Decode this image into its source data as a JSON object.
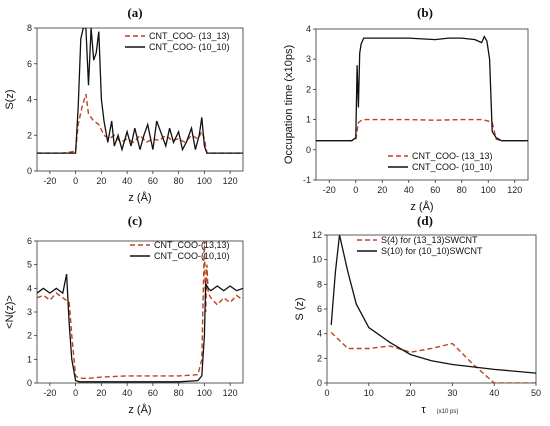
{
  "chart_data": [
    {
      "id": "a",
      "type": "line",
      "panel_label": "(a)",
      "xlabel": "z (Å)",
      "ylabel": "S(z)",
      "xlim": [
        -30,
        130
      ],
      "ylim": [
        0,
        8
      ],
      "xticks": [
        -20,
        0,
        20,
        40,
        60,
        80,
        100,
        120
      ],
      "yticks": [
        0,
        2,
        4,
        6,
        8
      ],
      "legend_position": "top-right",
      "series": [
        {
          "name": "CNT_COO- (13_13)",
          "style": "dashed",
          "color": "#b8451f",
          "x": [
            -30,
            -10,
            0,
            2,
            5,
            8,
            10,
            14,
            18,
            22,
            26,
            30,
            35,
            40,
            45,
            50,
            55,
            60,
            65,
            70,
            75,
            80,
            85,
            90,
            95,
            98,
            100,
            102,
            110,
            120,
            130
          ],
          "y": [
            1.0,
            1.0,
            1.1,
            2.6,
            3.6,
            4.3,
            3.2,
            2.8,
            2.6,
            2.0,
            1.8,
            2.0,
            1.6,
            1.8,
            1.6,
            2.0,
            1.6,
            1.8,
            1.7,
            2.0,
            1.7,
            1.8,
            1.6,
            2.0,
            1.8,
            2.2,
            1.8,
            1.0,
            1.0,
            1.0,
            1.0
          ]
        },
        {
          "name": "CNT_COO- (10_10)",
          "style": "solid",
          "color": "#111111",
          "x": [
            -30,
            -10,
            0,
            2,
            4,
            6,
            8,
            10,
            12,
            14,
            16,
            18,
            20,
            22,
            25,
            28,
            30,
            33,
            36,
            40,
            43,
            46,
            50,
            53,
            56,
            60,
            63,
            66,
            70,
            73,
            76,
            80,
            83,
            86,
            90,
            93,
            96,
            98,
            100,
            102,
            110,
            120,
            130
          ],
          "y": [
            1.0,
            1.0,
            1.0,
            3.6,
            7.4,
            8.0,
            8.0,
            4.8,
            8.0,
            6.2,
            6.6,
            7.8,
            4.0,
            2.8,
            1.6,
            2.8,
            1.4,
            2.0,
            1.2,
            2.2,
            1.4,
            2.4,
            1.2,
            2.0,
            2.6,
            1.2,
            2.8,
            2.2,
            1.4,
            2.4,
            1.6,
            2.2,
            1.2,
            1.6,
            2.4,
            1.2,
            2.0,
            3.0,
            1.4,
            1.0,
            1.0,
            1.0,
            1.0
          ]
        }
      ]
    },
    {
      "id": "b",
      "type": "line",
      "panel_label": "(b)",
      "xlabel": "z (Å)",
      "ylabel": "Occupation time (x10ps)",
      "xlim": [
        -30,
        130
      ],
      "ylim": [
        -1,
        4
      ],
      "xticks": [
        -20,
        0,
        20,
        40,
        60,
        80,
        100,
        120
      ],
      "yticks": [
        -1,
        0,
        1,
        2,
        3,
        4
      ],
      "legend_position": "bottom-right",
      "series": [
        {
          "name": "CNT_COO- (13_13)",
          "style": "dashed",
          "color": "#b8451f",
          "x": [
            -30,
            -10,
            -3,
            0,
            2,
            5,
            10,
            20,
            40,
            60,
            80,
            95,
            100,
            103,
            106,
            110,
            120,
            130
          ],
          "y": [
            0.3,
            0.3,
            0.3,
            0.35,
            0.9,
            1.0,
            1.0,
            1.0,
            1.0,
            0.98,
            1.0,
            1.0,
            0.95,
            0.9,
            0.35,
            0.3,
            0.3,
            0.3
          ],
          "style_note": ""
        },
        {
          "name": "CNT_COO- (10_10)",
          "style": "solid",
          "color": "#111111",
          "x": [
            -30,
            -10,
            -3,
            0,
            1,
            2,
            3,
            4,
            6,
            10,
            20,
            40,
            60,
            70,
            80,
            90,
            95,
            97,
            99,
            101,
            103,
            106,
            110,
            120,
            130
          ],
          "y": [
            0.3,
            0.3,
            0.3,
            0.4,
            2.8,
            1.4,
            3.2,
            3.5,
            3.7,
            3.7,
            3.7,
            3.7,
            3.65,
            3.7,
            3.7,
            3.65,
            3.55,
            3.75,
            3.6,
            3.0,
            0.6,
            0.4,
            0.3,
            0.3,
            0.3
          ]
        }
      ]
    },
    {
      "id": "c",
      "type": "line",
      "panel_label": "(c)",
      "xlabel": "z (Å)",
      "ylabel": "<N(z)>",
      "xlim": [
        -30,
        130
      ],
      "ylim": [
        0,
        6
      ],
      "xticks": [
        -20,
        0,
        20,
        40,
        60,
        80,
        100,
        120
      ],
      "yticks": [
        0,
        1,
        2,
        3,
        4,
        5,
        6
      ],
      "legend_position": "top-right",
      "series": [
        {
          "name": "CNT_COO-(13,13)",
          "style": "dashed",
          "color": "#b8451f",
          "x": [
            -30,
            -25,
            -20,
            -15,
            -10,
            -5,
            -3,
            0,
            3,
            10,
            20,
            40,
            60,
            80,
            95,
            98,
            100,
            101,
            102,
            103,
            105,
            110,
            115,
            120,
            125,
            130
          ],
          "y": [
            3.6,
            3.7,
            3.5,
            3.8,
            3.6,
            3.4,
            2.0,
            0.3,
            0.2,
            0.2,
            0.25,
            0.3,
            0.3,
            0.3,
            0.35,
            1.0,
            6.0,
            3.0,
            5.0,
            3.8,
            3.6,
            3.3,
            3.6,
            3.4,
            3.7,
            3.5
          ]
        },
        {
          "name": "CNT_COO-(10,10)",
          "style": "solid",
          "color": "#111111",
          "x": [
            -30,
            -25,
            -20,
            -15,
            -10,
            -7,
            -5,
            -3,
            0,
            3,
            10,
            20,
            40,
            60,
            80,
            95,
            98,
            100,
            101,
            103,
            105,
            110,
            115,
            120,
            125,
            130
          ],
          "y": [
            3.8,
            4.0,
            3.8,
            4.0,
            3.8,
            4.6,
            2.5,
            1.0,
            0.1,
            0.05,
            0.05,
            0.05,
            0.05,
            0.05,
            0.05,
            0.1,
            0.3,
            2.0,
            4.2,
            4.0,
            3.9,
            4.1,
            3.9,
            4.1,
            3.9,
            4.0
          ]
        }
      ]
    },
    {
      "id": "d",
      "type": "line",
      "panel_label": "(d)",
      "xlabel": "τ",
      "xlabel_sub": "(x10 ps)",
      "ylabel": "S (z)",
      "xlim": [
        0,
        50
      ],
      "ylim": [
        0,
        12
      ],
      "xticks": [
        0,
        10,
        20,
        30,
        40,
        50
      ],
      "yticks": [
        0,
        2,
        4,
        6,
        8,
        10,
        12
      ],
      "legend_position": "top-right",
      "series": [
        {
          "name": "S(4) for (13_13)SWCNT",
          "style": "dashed",
          "color": "#b8451f",
          "x": [
            1,
            5,
            10,
            15,
            20,
            25,
            30,
            35,
            40,
            45,
            50
          ],
          "y": [
            4.1,
            2.8,
            2.8,
            3.0,
            2.5,
            2.8,
            3.2,
            1.5,
            0.0,
            0.0,
            0.0
          ]
        },
        {
          "name": "S(10) for (10_10)SWCNT",
          "style": "solid",
          "color": "#111111",
          "x": [
            1,
            2,
            3,
            5,
            7,
            10,
            15,
            20,
            25,
            30,
            40,
            50
          ],
          "y": [
            4.7,
            9.0,
            12.0,
            9.0,
            6.4,
            4.5,
            3.3,
            2.3,
            1.8,
            1.5,
            1.1,
            0.8
          ]
        }
      ]
    }
  ]
}
